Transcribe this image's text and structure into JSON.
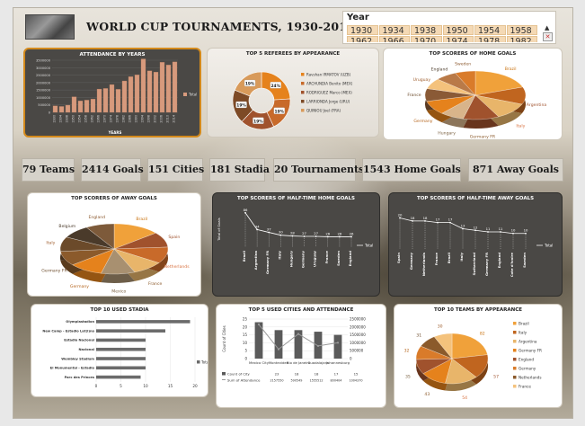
{
  "title": "WORLD CUP TOURNAMENTS, 1930-2014",
  "slicer": {
    "header": "Year",
    "row1": [
      "1930",
      "1934",
      "1938",
      "1950",
      "1954",
      "1958"
    ],
    "row2": [
      "1962",
      "1966",
      "1970",
      "1974",
      "1978",
      "1982"
    ]
  },
  "kpis": {
    "teams": "79 Teams",
    "goals": "2414 Goals",
    "cities": "151 Cities",
    "stadia": "181 Stadia",
    "tournaments": "20 Tournaments",
    "home_goals": "1543 Home Goals",
    "away_goals": "871 Away Goals"
  },
  "colors": {
    "orange": "#e5821c",
    "brown": "#a0522d",
    "dark_panel": "#4a4845",
    "bar_salmon": "#d79a7d"
  },
  "chart_data": [
    {
      "id": "attendance",
      "type": "bar",
      "title": "ATTENDANCE BY YEARS",
      "xlabel": "YEARS",
      "legend": [
        "Total"
      ],
      "ylim": [
        0,
        3500000
      ],
      "yticks": [
        "3500000",
        "3000000",
        "2500000",
        "2000000",
        "1500000",
        "1000000",
        "500000",
        "0"
      ],
      "categories": [
        "1930",
        "1934",
        "1938",
        "1950",
        "1954",
        "1958",
        "1962",
        "1966",
        "1970",
        "1974",
        "1978",
        "1982",
        "1986",
        "1990",
        "1994",
        "1998",
        "2002",
        "2006",
        "2010",
        "2014"
      ],
      "values": [
        434000,
        395000,
        483000,
        1045246,
        768607,
        819810,
        893172,
        1563135,
        1603975,
        1865753,
        1545791,
        2109723,
        2394031,
        2516215,
        3587538,
        2785100,
        2705197,
        3359439,
        3178856,
        3386810
      ]
    },
    {
      "id": "referees",
      "type": "pie",
      "title": "TOP 5 REFEREES BY APPEARANCE",
      "labels": [
        "Ravshan IRMATOV (UZB)",
        "ARCHUNDIA Benito (MEX)",
        "RODRIGUEZ Marco (MEX)",
        "LARRIONDA Jorge (URU)",
        "QUINIOU Joel (FRA)"
      ],
      "values": [
        24,
        19,
        19,
        19,
        19
      ],
      "value_labels": [
        "24%",
        "19%",
        "19%",
        "19%",
        "19%"
      ]
    },
    {
      "id": "home_scorers",
      "type": "pie",
      "title": "TOP SCORERS OF HOME GOALS",
      "labels": [
        "Brazil",
        "Argentina",
        "Italy",
        "Germany FR",
        "Hungary",
        "Germany",
        "France",
        "Uruguay",
        "England",
        "Sweden"
      ],
      "values": [
        221,
        131,
        128,
        131,
        87,
        106,
        96,
        80,
        79,
        74
      ]
    },
    {
      "id": "away_scorers",
      "type": "pie",
      "title": "TOP SCORERS OF AWAY GOALS",
      "labels": [
        "Brazil",
        "Spain",
        "Netherlands",
        "France",
        "Mexico",
        "Germany",
        "Germany FR",
        "Italy",
        "Belgium",
        "England"
      ],
      "values": [
        36,
        25,
        27,
        24,
        26,
        26,
        24,
        24,
        22,
        22
      ]
    },
    {
      "id": "half_home",
      "type": "line",
      "title": "TOP SCORERS OF HALF-TIME HOME GOALS",
      "ylabel": "Total of Goals",
      "legend": [
        "Total"
      ],
      "categories": [
        "Brazil",
        "Argentina",
        "Germany FR",
        "Italy",
        "Hungary",
        "Germany",
        "Uruguay",
        "France",
        "Sweden",
        "England"
      ],
      "values": [
        86,
        44,
        37,
        30,
        28,
        27,
        27,
        26,
        26,
        26
      ]
    },
    {
      "id": "half_away",
      "type": "line",
      "title": "TOP SCORERS OF HALF-TIME AWAY GOALS",
      "legend": [
        "Total"
      ],
      "categories": [
        "Spain",
        "Germany",
        "Netherlands",
        "France",
        "Brazil",
        "Italy",
        "Switzerland",
        "Germany FR",
        "England",
        "Cote d'Ivoire",
        "Sweden"
      ],
      "values": [
        20,
        18,
        18,
        17,
        17,
        13,
        12,
        11,
        11,
        10,
        10
      ]
    },
    {
      "id": "stadia",
      "type": "bar",
      "orientation": "horizontal",
      "title": "TOP 10 USED STADIA",
      "legend": [
        "Total"
      ],
      "xlim": [
        0,
        20
      ],
      "xticks": [
        "0",
        "5",
        "10",
        "15",
        "20"
      ],
      "categories": [
        "Olympiastadion",
        "New Camp - Estadio Lat(i)no",
        "Estadio Nacional",
        "Nacional",
        "Wembley Stadium",
        "El Monumental - Estadio",
        "Parc des Princes"
      ],
      "values": [
        19,
        14,
        10,
        10,
        10,
        10,
        9
      ]
    },
    {
      "id": "cities",
      "type": "bar",
      "title": "TOP 5 USED CITIES AND ATTENDANCE",
      "ylabel": "Count of Cities",
      "categories": [
        "Mexico City",
        "Montevideo",
        "Rio de Janeiro",
        "Guadalajara",
        "Johannesburg"
      ],
      "series": [
        {
          "name": "Count of City",
          "values": [
            23,
            18,
            18,
            17,
            15
          ]
        },
        {
          "name": "Sum of Attendance",
          "values": [
            2157550,
            590549,
            1555512,
            800404,
            1004370
          ]
        }
      ],
      "table_row1": [
        "23",
        "18",
        "18",
        "17",
        "15"
      ],
      "table_row2": [
        "2157550",
        "590549",
        "1555512",
        "800404",
        "1004370"
      ],
      "y1ticks": [
        "25",
        "20",
        "15",
        "10",
        "5",
        "0"
      ],
      "y2ticks": [
        "2500000",
        "2000000",
        "1500000",
        "1000000",
        "500000",
        "0"
      ]
    },
    {
      "id": "teams",
      "type": "pie",
      "title": "TOP 10 TEAMS BY APPEARANCE",
      "labels": [
        "Brazil",
        "Italy",
        "Argentina",
        "Germany FR",
        "England",
        "Germany",
        "Netherlands",
        "France"
      ],
      "values": [
        82,
        57,
        54,
        43,
        35,
        32,
        31,
        30
      ],
      "value_labels": [
        "82",
        "57",
        "54",
        "43",
        "35",
        "32",
        "31",
        "30"
      ]
    }
  ]
}
